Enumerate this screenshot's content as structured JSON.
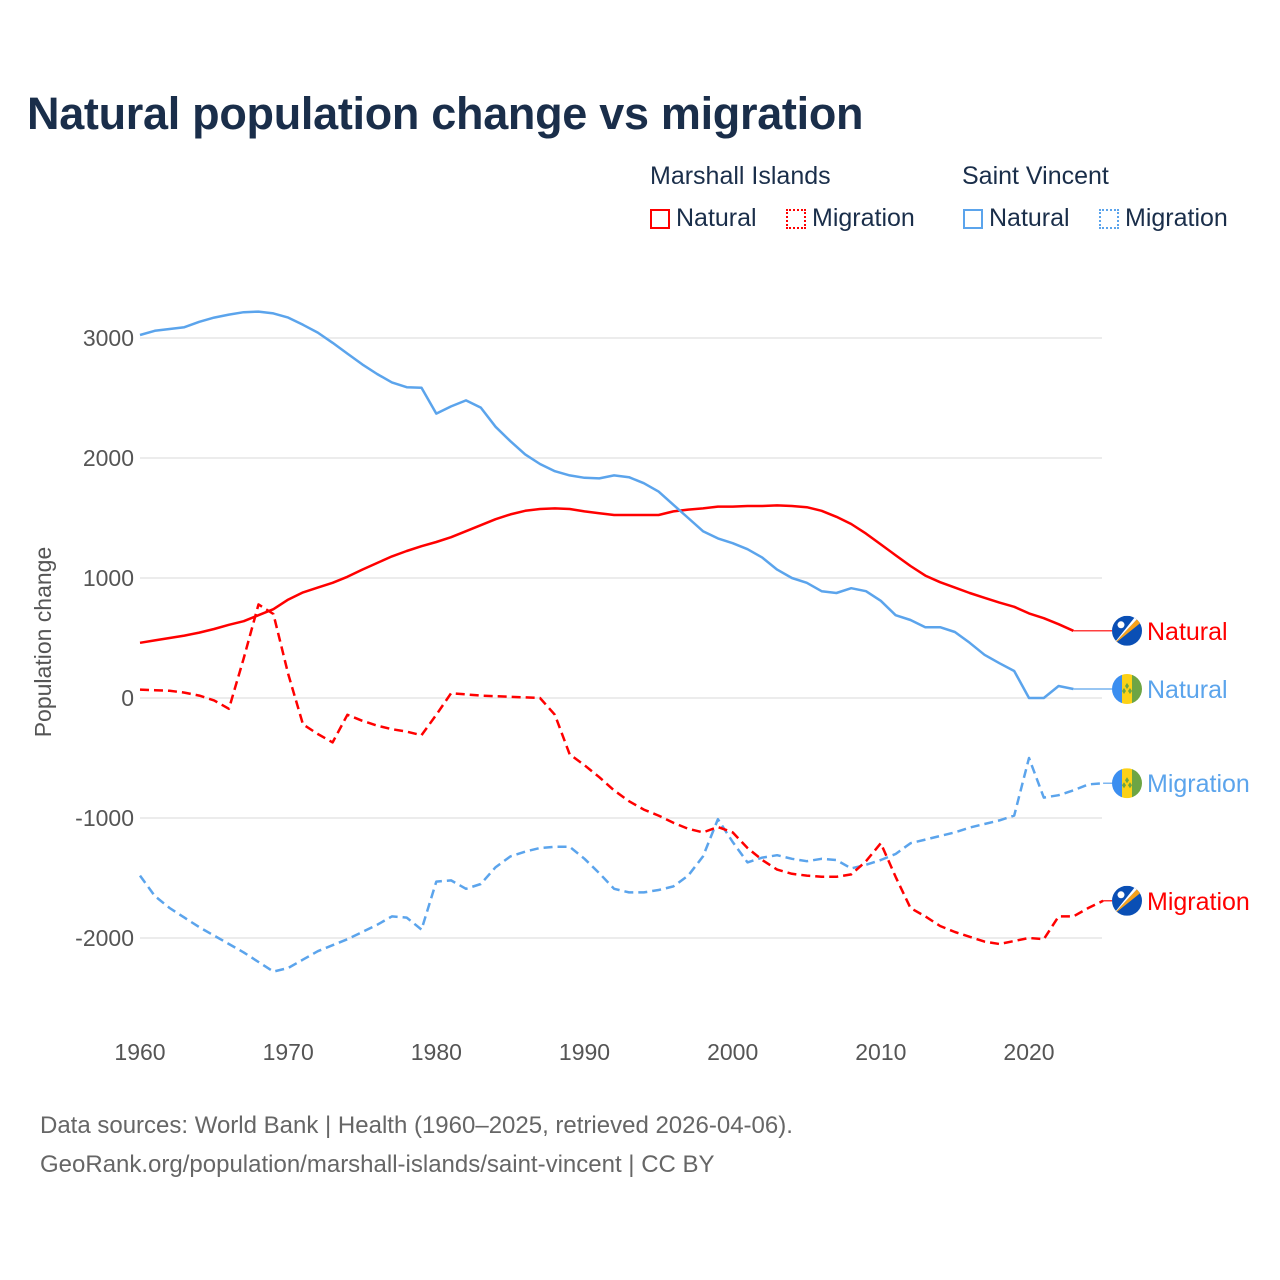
{
  "title": "Natural population change vs migration",
  "legend": {
    "groups": [
      {
        "name": "Marshall Islands",
        "items": [
          "Natural",
          "Migration"
        ],
        "color": "#ff0000"
      },
      {
        "name": "Saint Vincent",
        "items": [
          "Natural",
          "Migration"
        ],
        "color": "#5ba4ec"
      }
    ]
  },
  "footer": {
    "line1": "Data sources: World Bank | Health (1960–2025, retrieved 2026-04-06).",
    "line2": "GeoRank.org/population/marshall-islands/saint-vincent | CC BY"
  },
  "chart_data": {
    "type": "line",
    "title": "Natural population change vs migration",
    "xlabel": "",
    "ylabel": "Population change",
    "xlim": [
      1960,
      2025
    ],
    "ylim": [
      -2500,
      3300
    ],
    "xticks": [
      1960,
      1970,
      1980,
      1990,
      2000,
      2010,
      2020
    ],
    "yticks": [
      -2000,
      -1000,
      0,
      1000,
      2000,
      3000
    ],
    "grid": true,
    "series": [
      {
        "name": "Marshall Islands Natural",
        "label": "Natural",
        "color": "#ff0000",
        "dash": false,
        "flag": "marshall-islands",
        "x0": 1960,
        "values": [
          460,
          480,
          500,
          520,
          545,
          575,
          610,
          640,
          690,
          740,
          820,
          880,
          920,
          960,
          1010,
          1070,
          1125,
          1180,
          1225,
          1265,
          1300,
          1340,
          1390,
          1440,
          1490,
          1530,
          1560,
          1575,
          1580,
          1575,
          1555,
          1540,
          1525,
          1525,
          1525,
          1525,
          1555,
          1570,
          1580,
          1595,
          1595,
          1600,
          1600,
          1605,
          1600,
          1590,
          1560,
          1510,
          1450,
          1370,
          1280,
          1190,
          1100,
          1020,
          965,
          920,
          875,
          835,
          795,
          760,
          705,
          665,
          615,
          560
        ]
      },
      {
        "name": "Saint Vincent Natural",
        "label": "Natural",
        "color": "#5ba4ec",
        "dash": false,
        "flag": "saint-vincent",
        "x0": 1960,
        "values": [
          3025,
          3060,
          3075,
          3090,
          3135,
          3170,
          3195,
          3215,
          3220,
          3205,
          3170,
          3110,
          3045,
          2960,
          2870,
          2780,
          2700,
          2630,
          2590,
          2585,
          2370,
          2430,
          2480,
          2420,
          2260,
          2140,
          2030,
          1950,
          1890,
          1855,
          1835,
          1830,
          1855,
          1840,
          1790,
          1720,
          1610,
          1500,
          1390,
          1330,
          1290,
          1240,
          1170,
          1070,
          1000,
          960,
          890,
          875,
          915,
          890,
          810,
          690,
          650,
          590,
          590,
          550,
          460,
          360,
          290,
          225,
          0,
          0,
          100,
          75
        ]
      },
      {
        "name": "Saint Vincent Migration",
        "label": "Migration",
        "color": "#5ba4ec",
        "dash": true,
        "flag": "saint-vincent",
        "x0": 1960,
        "values": [
          -1480,
          -1650,
          -1750,
          -1830,
          -1910,
          -1980,
          -2050,
          -2120,
          -2200,
          -2280,
          -2250,
          -2180,
          -2110,
          -2060,
          -2010,
          -1950,
          -1890,
          -1820,
          -1830,
          -1930,
          -1530,
          -1520,
          -1590,
          -1550,
          -1410,
          -1320,
          -1280,
          -1250,
          -1240,
          -1240,
          -1340,
          -1460,
          -1590,
          -1620,
          -1620,
          -1600,
          -1570,
          -1480,
          -1320,
          -1010,
          -1200,
          -1370,
          -1330,
          -1310,
          -1340,
          -1360,
          -1340,
          -1350,
          -1420,
          -1390,
          -1350,
          -1300,
          -1210,
          -1180,
          -1150,
          -1120,
          -1080,
          -1050,
          -1020,
          -980,
          -500,
          -830,
          -810,
          -770,
          -720,
          -710
        ]
      },
      {
        "name": "Marshall Islands Migration",
        "label": "Migration",
        "color": "#ff0000",
        "dash": true,
        "flag": "marshall-islands",
        "x0": 1960,
        "values": [
          70,
          65,
          60,
          45,
          20,
          -20,
          -90,
          330,
          780,
          700,
          200,
          -220,
          -300,
          -370,
          -140,
          -190,
          -230,
          -260,
          -280,
          -310,
          -140,
          40,
          30,
          20,
          15,
          10,
          5,
          0,
          -140,
          -470,
          -560,
          -660,
          -770,
          -860,
          -930,
          -980,
          -1040,
          -1090,
          -1120,
          -1075,
          -1120,
          -1250,
          -1350,
          -1430,
          -1465,
          -1480,
          -1490,
          -1490,
          -1470,
          -1360,
          -1210,
          -1490,
          -1750,
          -1820,
          -1900,
          -1950,
          -1990,
          -2030,
          -2050,
          -2025,
          -2000,
          -2010,
          -1820,
          -1820,
          -1750,
          -1690
        ]
      }
    ]
  }
}
